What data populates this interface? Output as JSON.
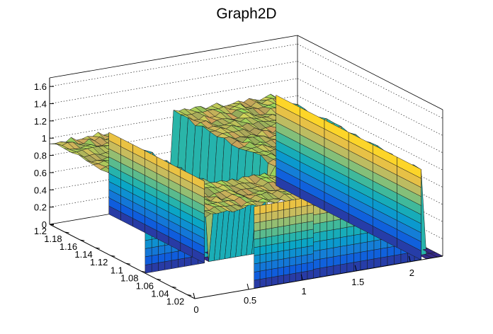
{
  "chart_data": {
    "type": "surface3d",
    "title": "Graph2D",
    "x_ticks": [
      "0",
      "0.5",
      "1",
      "1.5",
      "2"
    ],
    "y_ticks": [
      "1.02",
      "1.04",
      "1.06",
      "1.08",
      "1.1",
      "1.12",
      "1.14",
      "1.16",
      "1.18",
      "1.2"
    ],
    "z_ticks": [
      "0",
      "0.2",
      "0.4",
      "0.6",
      "0.8",
      "1",
      "1.2",
      "1.4",
      "1.6"
    ],
    "xlim": [
      0,
      2.3
    ],
    "ylim": [
      1.01,
      1.2
    ],
    "zlim": [
      0,
      1.7
    ],
    "palette": [
      "#352a87",
      "#0f5cdd",
      "#1481d6",
      "#06a4ca",
      "#2eb7a4",
      "#87bf77",
      "#d1bb59",
      "#fec832",
      "#f9fb0e"
    ],
    "plateau_regions": [
      {
        "x_range": [
          0,
          1.1
        ],
        "y_range": [
          1.01,
          1.2
        ],
        "z": 0.95
      },
      {
        "x_range": [
          1.1,
          2.1
        ],
        "y_range": [
          1.01,
          1.2
        ],
        "z": 1.05
      }
    ],
    "dropout_region": {
      "x_range": [
        0.55,
        1.1
      ],
      "y_range": [
        1.075,
        1.2
      ],
      "z": 0
    },
    "right_drop_x": 2.1
  }
}
